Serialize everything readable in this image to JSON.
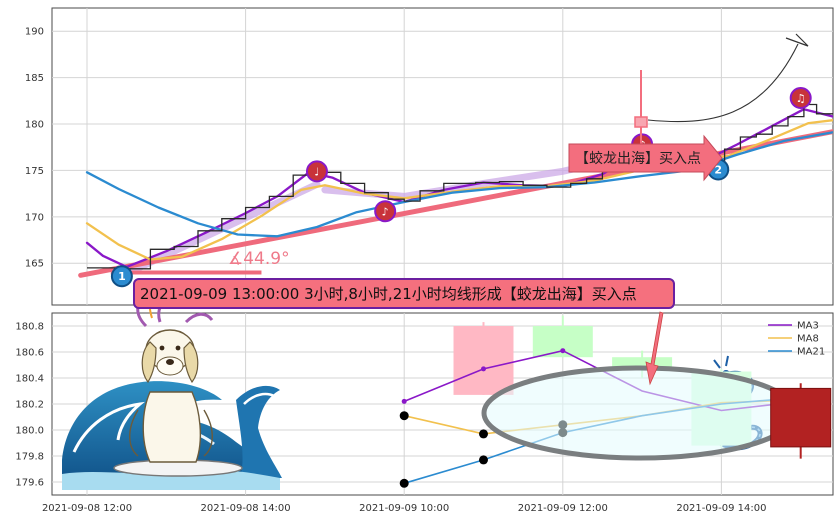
{
  "chart_data": [
    {
      "panel": "top",
      "type": "line",
      "y_ticks": [
        165,
        170,
        175,
        180,
        185,
        190
      ],
      "ylim": [
        160.5,
        192.5
      ],
      "grid": true,
      "price": [
        [
          0.0,
          164.5
        ],
        [
          0.25,
          164.4
        ],
        [
          0.4,
          166.5
        ],
        [
          0.55,
          166.8
        ],
        [
          0.7,
          168.5
        ],
        [
          0.85,
          169.8
        ],
        [
          1.0,
          171.0
        ],
        [
          1.15,
          172.2
        ],
        [
          1.3,
          174.5
        ],
        [
          1.4,
          175.5
        ],
        [
          1.5,
          174.8
        ],
        [
          1.6,
          173.6
        ],
        [
          1.75,
          172.6
        ],
        [
          1.9,
          171.9
        ],
        [
          2.0,
          171.7
        ],
        [
          2.1,
          172.8
        ],
        [
          2.25,
          173.6
        ],
        [
          2.45,
          173.7
        ],
        [
          2.6,
          173.8
        ],
        [
          2.75,
          173.4
        ],
        [
          2.9,
          173.2
        ],
        [
          3.05,
          173.6
        ],
        [
          3.15,
          174.1
        ],
        [
          3.25,
          175.1
        ],
        [
          3.35,
          176.4
        ],
        [
          3.45,
          177.1
        ],
        [
          3.55,
          176.6
        ],
        [
          3.65,
          176.3
        ],
        [
          3.75,
          176.3
        ],
        [
          3.85,
          176.1
        ],
        [
          3.92,
          176.0
        ],
        [
          4.02,
          177.3
        ],
        [
          4.12,
          178.6
        ],
        [
          4.22,
          178.9
        ],
        [
          4.32,
          179.8
        ],
        [
          4.42,
          180.8
        ],
        [
          4.52,
          182.1
        ],
        [
          4.6,
          181.1
        ],
        [
          4.72,
          180.6
        ],
        [
          4.82,
          180.3
        ],
        [
          4.92,
          180.4
        ],
        [
          5.0,
          180.8
        ],
        [
          5.12,
          181.2
        ],
        [
          5.25,
          181.4
        ]
      ],
      "series": [
        {
          "name": "MA3",
          "color": "#8a18c8",
          "width": 2.3,
          "points": [
            [
              0.0,
              167.2
            ],
            [
              0.1,
              165.8
            ],
            [
              0.25,
              164.6
            ],
            [
              0.5,
              166.3
            ],
            [
              0.75,
              168.3
            ],
            [
              1.0,
              170.4
            ],
            [
              1.2,
              172.2
            ],
            [
              1.4,
              174.8
            ],
            [
              1.55,
              174.2
            ],
            [
              1.75,
              172.6
            ],
            [
              2.0,
              171.6
            ],
            [
              2.25,
              172.9
            ],
            [
              2.5,
              173.7
            ],
            [
              2.75,
              173.4
            ],
            [
              3.0,
              173.3
            ],
            [
              3.25,
              174.6
            ],
            [
              3.45,
              176.5
            ],
            [
              3.65,
              176.4
            ],
            [
              3.9,
              176.1
            ],
            [
              4.1,
              177.8
            ],
            [
              4.3,
              179.6
            ],
            [
              4.52,
              181.6
            ],
            [
              4.75,
              180.6
            ],
            [
              5.0,
              180.5
            ],
            [
              5.1,
              180.7
            ]
          ]
        },
        {
          "name": "MA8",
          "color": "#f2c14e",
          "width": 2.3,
          "points": [
            [
              0.0,
              169.3
            ],
            [
              0.2,
              167.0
            ],
            [
              0.4,
              165.4
            ],
            [
              0.6,
              165.7
            ],
            [
              0.85,
              167.6
            ],
            [
              1.1,
              170.1
            ],
            [
              1.35,
              172.9
            ],
            [
              1.5,
              173.4
            ],
            [
              1.75,
              172.5
            ],
            [
              2.0,
              172.0
            ],
            [
              2.3,
              172.7
            ],
            [
              2.6,
              173.3
            ],
            [
              2.9,
              173.3
            ],
            [
              3.2,
              173.9
            ],
            [
              3.5,
              175.1
            ],
            [
              3.8,
              176.0
            ],
            [
              4.05,
              176.6
            ],
            [
              4.3,
              178.3
            ],
            [
              4.55,
              180.1
            ],
            [
              4.8,
              180.6
            ],
            [
              5.0,
              180.5
            ],
            [
              5.1,
              180.5
            ]
          ]
        },
        {
          "name": "MA21",
          "color": "#2b8bd0",
          "width": 2.3,
          "points": [
            [
              0.0,
              174.8
            ],
            [
              0.2,
              173.0
            ],
            [
              0.45,
              171.0
            ],
            [
              0.7,
              169.3
            ],
            [
              0.95,
              168.1
            ],
            [
              1.2,
              167.9
            ],
            [
              1.45,
              168.9
            ],
            [
              1.7,
              170.5
            ],
            [
              2.0,
              171.6
            ],
            [
              2.3,
              172.6
            ],
            [
              2.6,
              173.1
            ],
            [
              2.9,
              173.2
            ],
            [
              3.2,
              173.7
            ],
            [
              3.5,
              174.4
            ],
            [
              3.8,
              175.0
            ],
            [
              4.1,
              176.7
            ],
            [
              4.4,
              178.2
            ],
            [
              4.7,
              179.1
            ],
            [
              5.0,
              179.7
            ],
            [
              5.1,
              180.0
            ]
          ]
        }
      ],
      "trend_line": {
        "from": [
          -0.04,
          163.7
        ],
        "to": [
          5.2,
          180.8
        ],
        "color": "#ef6a7c"
      },
      "angle_label": "∡44.9°",
      "buy_label": "【蛟龙出海】买入点",
      "markers": [
        {
          "kind": "number",
          "label": "1",
          "x": 0.22,
          "y": 163.6,
          "color": "#2b8bd0"
        },
        {
          "kind": "number",
          "label": "2",
          "x": 3.98,
          "y": 175.1,
          "color": "#2b8bd0"
        },
        {
          "kind": "note",
          "label": "♩",
          "x": 1.45,
          "y": 174.9,
          "color": "#c8333a"
        },
        {
          "kind": "note",
          "label": "♪",
          "x": 1.88,
          "y": 170.6,
          "color": "#c8333a"
        },
        {
          "kind": "note",
          "label": "♪",
          "x": 3.5,
          "y": 177.8,
          "color": "#c8333a"
        },
        {
          "kind": "note",
          "label": "♫",
          "x": 4.5,
          "y": 182.8,
          "color": "#c8333a"
        }
      ]
    },
    {
      "panel": "bottom",
      "type": "candlestick",
      "x_ticks": [
        "2021-09-08 12:00",
        "2021-09-08 14:00",
        "2021-09-09 10:00",
        "2021-09-09 12:00",
        "2021-09-09 14:00"
      ],
      "y_ticks": [
        "179.6",
        "179.8",
        "180.0",
        "180.2",
        "180.4",
        "180.6",
        "180.8"
      ],
      "ylim": [
        179.5,
        180.9
      ],
      "grid": true,
      "candles": [
        {
          "x": 2.5,
          "open": 180.8,
          "close": 180.27,
          "high": 180.83,
          "low": 180.27,
          "color": "#ffb8c4"
        },
        {
          "x": 3.0,
          "open": 180.56,
          "close": 180.8,
          "high": 180.88,
          "low": 180.56,
          "color": "#c6ffc6"
        },
        {
          "x": 3.5,
          "open": 180.47,
          "close": 180.56,
          "high": 180.61,
          "low": 180.4,
          "color": "#c6ffc6"
        },
        {
          "x": 4.0,
          "open": 179.88,
          "close": 180.45,
          "high": 180.47,
          "low": 179.86,
          "color": "#d8ffe0"
        },
        {
          "x": 4.5,
          "open": 180.32,
          "close": 179.87,
          "high": 180.36,
          "low": 179.78,
          "color": "#b22222"
        }
      ],
      "series": [
        {
          "name": "MA3",
          "color": "#8a18c8",
          "points": [
            [
              2.0,
              180.22
            ],
            [
              2.5,
              180.47
            ],
            [
              3.0,
              180.61
            ],
            [
              3.5,
              180.3
            ],
            [
              4.0,
              180.15
            ],
            [
              4.5,
              180.22
            ]
          ],
          "dots": [
            2.0,
            2.5,
            3.0
          ]
        },
        {
          "name": "MA8",
          "color": "#f2c14e",
          "points": [
            [
              2.0,
              180.11
            ],
            [
              2.5,
              179.97
            ],
            [
              3.0,
              180.04
            ],
            [
              3.5,
              180.11
            ],
            [
              4.0,
              180.21
            ],
            [
              4.5,
              180.23
            ]
          ],
          "dots": [
            2.0,
            2.5,
            3.0
          ]
        },
        {
          "name": "MA21",
          "color": "#2b8bd0",
          "points": [
            [
              2.0,
              179.59
            ],
            [
              2.5,
              179.77
            ],
            [
              3.0,
              179.98
            ],
            [
              3.5,
              180.11
            ],
            [
              4.0,
              180.2
            ],
            [
              4.5,
              180.25
            ]
          ],
          "dots": [
            2.0,
            2.5,
            3.0
          ]
        }
      ],
      "legend": [
        "MA3",
        "MA8",
        "MA21"
      ],
      "legend_position": "top-right"
    }
  ],
  "annotation": "2021-09-09 13:00:00 3小时,8小时,21小时均线形成【蛟龙出海】买入点",
  "colors": {
    "grid": "#d4d4d4",
    "axis": "#333333",
    "trend": "#ef6a7c",
    "annotation_box": "#f5707e",
    "annotation_border": "#6b1fa0",
    "ellipse_stroke": "#7a7e80",
    "ellipse_fill": "#e3fbfd",
    "buy_box": "#f36e7e"
  },
  "decorations": [
    "surfing-dog-illustration",
    "ocean-wave-illustration",
    "chinese-dragon-illustration",
    "curved-arrow"
  ]
}
